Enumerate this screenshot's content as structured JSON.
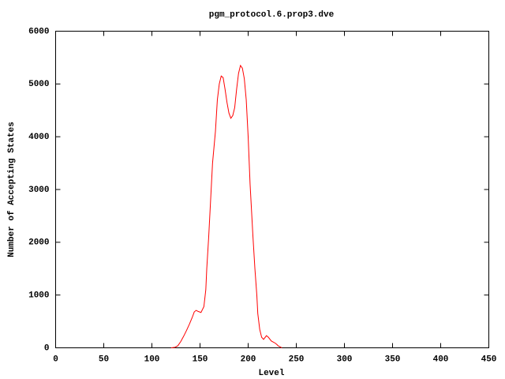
{
  "chart_data": {
    "type": "line",
    "title": "pgm_protocol.6.prop3.dve",
    "x_label": "Level",
    "y_label": "Number of Accepting States",
    "x": [
      120,
      124,
      127,
      130,
      133,
      136,
      139,
      142,
      144,
      146,
      148,
      151,
      154,
      156,
      157,
      159,
      161,
      163,
      166,
      168,
      170,
      172,
      174,
      176,
      178,
      180,
      182,
      184,
      186,
      188,
      190,
      192,
      194,
      196,
      198,
      200,
      202,
      205,
      207,
      209,
      210,
      212,
      214,
      216,
      219,
      221,
      224,
      226,
      228,
      230,
      231,
      233,
      235
    ],
    "values": [
      0,
      10,
      40,
      120,
      220,
      330,
      450,
      580,
      680,
      710,
      690,
      670,
      780,
      1100,
      1500,
      2100,
      2800,
      3500,
      4100,
      4700,
      5000,
      5150,
      5120,
      4900,
      4650,
      4450,
      4350,
      4400,
      4550,
      4900,
      5200,
      5350,
      5300,
      5100,
      4700,
      4000,
      3100,
      2100,
      1500,
      1000,
      650,
      350,
      200,
      160,
      230,
      200,
      130,
      110,
      90,
      60,
      40,
      20,
      0
    ],
    "color": "#ff0000",
    "xlim": [
      0,
      450
    ],
    "ylim": [
      0,
      6000
    ],
    "xticks": [
      0,
      50,
      100,
      150,
      200,
      250,
      300,
      350,
      400,
      450
    ],
    "yticks": [
      0,
      1000,
      2000,
      3000,
      4000,
      5000,
      6000
    ],
    "grid": false
  }
}
